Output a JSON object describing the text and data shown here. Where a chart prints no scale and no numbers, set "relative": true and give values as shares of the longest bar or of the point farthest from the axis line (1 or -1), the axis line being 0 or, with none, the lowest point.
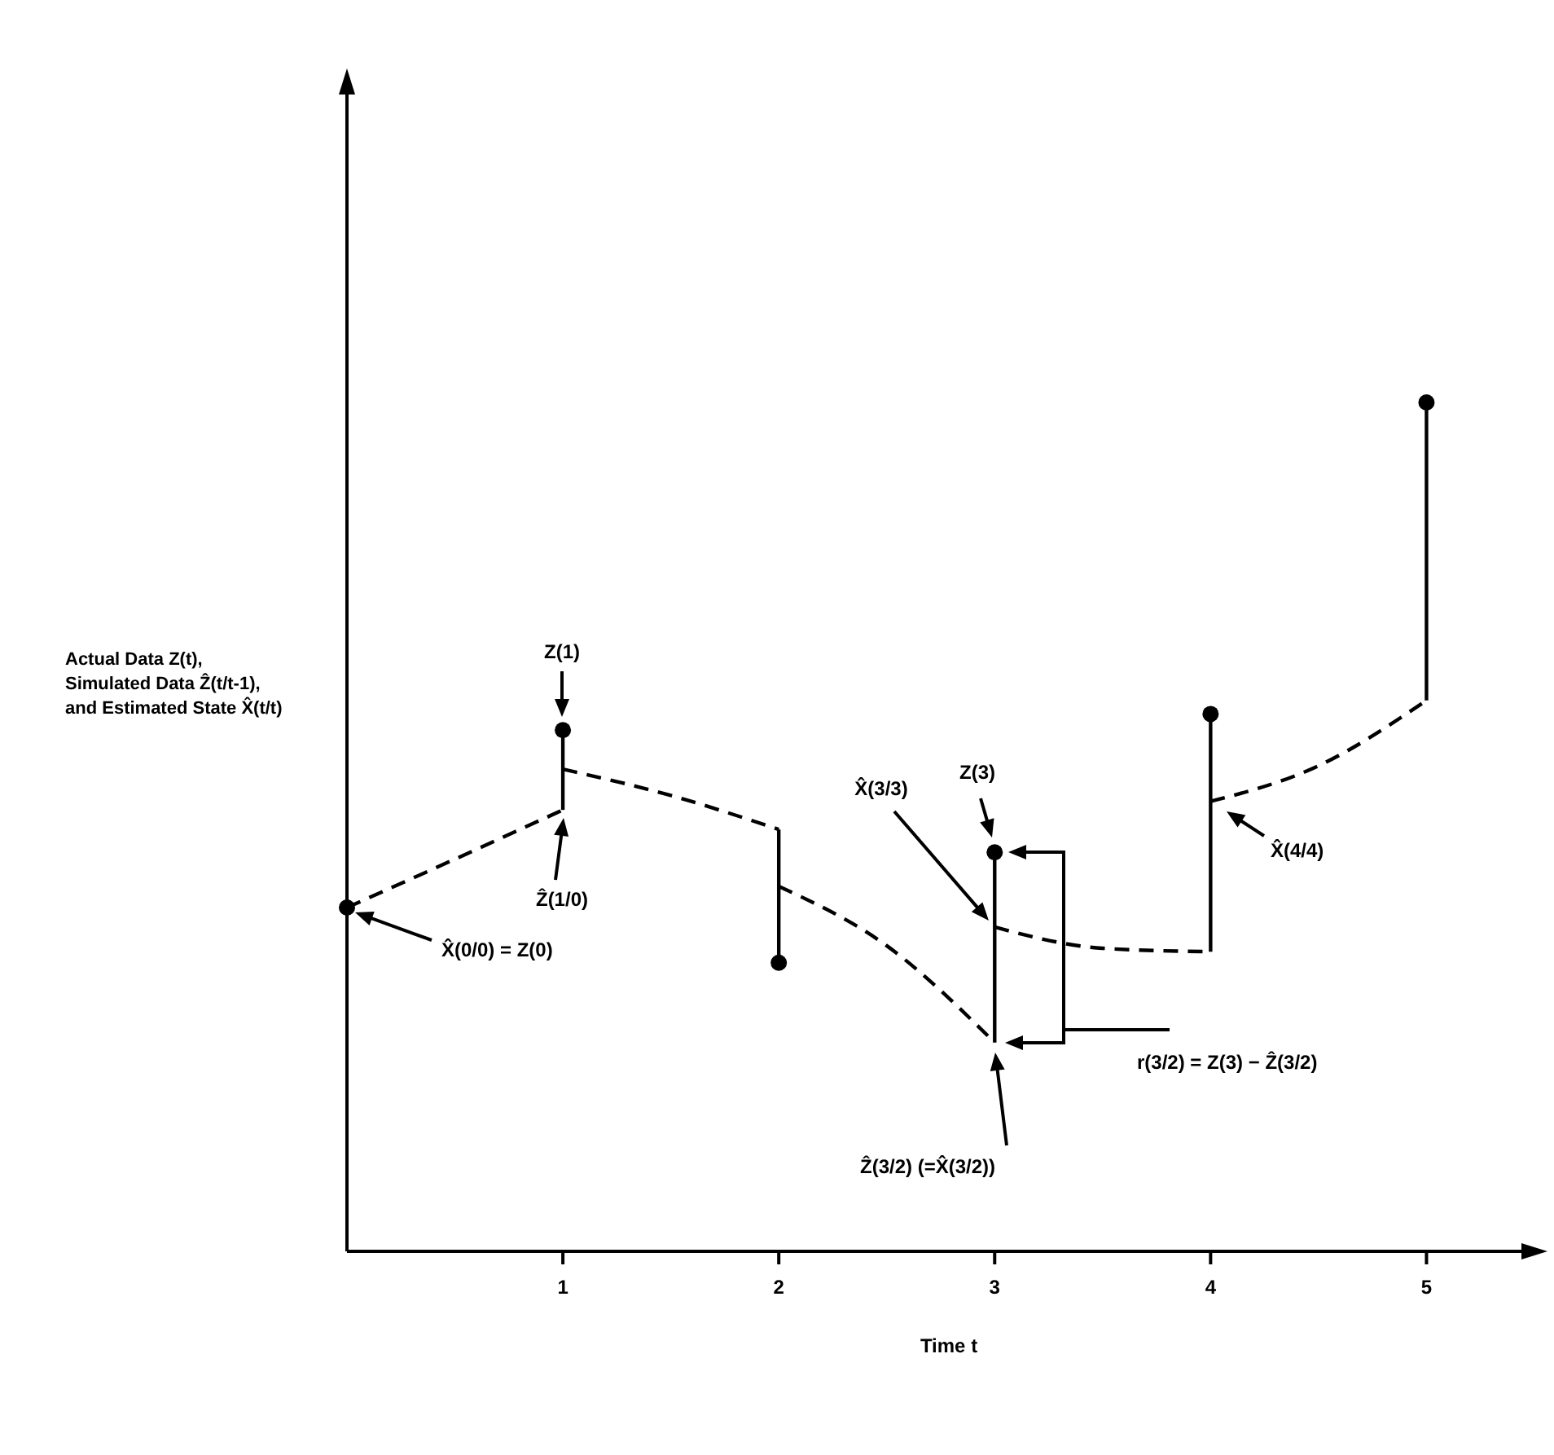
{
  "chart_data": {
    "type": "line",
    "relative": true,
    "xlabel": "Time  t",
    "ylabel": "Actual Data Z(t),\nSimulated Data Ẑ(t/t-1),\nand Estimated State X̂(t/t)",
    "xlim": [
      0,
      5.5
    ],
    "xticks": [
      1,
      2,
      3,
      4,
      5
    ],
    "tick_labels": "x",
    "grid": false,
    "series": [
      {
        "type": "scatter",
        "color": "#000000",
        "marker": "circle",
        "x": [
          0,
          1,
          2,
          3,
          4,
          5
        ],
        "values": [
          0.405,
          0.614,
          0.34,
          0.47,
          0.633,
          1.0
        ]
      },
      {
        "color": "#000000",
        "marker": "none",
        "line_style": "dashed",
        "x": [
          0,
          0.5,
          1
        ],
        "values": [
          0.405,
          0.462,
          0.52
        ]
      },
      {
        "color": "#000000",
        "marker": "none",
        "line_style": "dashed",
        "x": [
          1,
          1.5,
          2
        ],
        "values": [
          0.568,
          0.537,
          0.497
        ]
      },
      {
        "color": "#000000",
        "marker": "none",
        "line_style": "dashed",
        "x": [
          2,
          2.5,
          3
        ],
        "values": [
          0.43,
          0.36,
          0.246
        ]
      },
      {
        "color": "#000000",
        "marker": "none",
        "line_style": "dashed",
        "x": [
          3,
          3.5,
          4
        ],
        "values": [
          0.382,
          0.357,
          0.353
        ]
      },
      {
        "color": "#000000",
        "marker": "none",
        "line_style": "dashed",
        "x": [
          4,
          4.5,
          5
        ],
        "values": [
          0.53,
          0.572,
          0.649
        ]
      },
      {
        "color": "#000000",
        "marker": "none",
        "line_style": "solid",
        "x": [
          1,
          1
        ],
        "values": [
          0.52,
          0.614
        ]
      },
      {
        "color": "#000000",
        "marker": "none",
        "line_style": "solid",
        "x": [
          2,
          2
        ],
        "values": [
          0.497,
          0.34
        ]
      },
      {
        "color": "#000000",
        "marker": "none",
        "line_style": "solid",
        "x": [
          3,
          3
        ],
        "values": [
          0.246,
          0.47
        ]
      },
      {
        "color": "#000000",
        "marker": "none",
        "line_style": "solid",
        "x": [
          4,
          4
        ],
        "values": [
          0.353,
          0.633
        ]
      },
      {
        "color": "#000000",
        "marker": "none",
        "line_style": "solid",
        "x": [
          5,
          5
        ],
        "values": [
          0.649,
          1.0
        ]
      }
    ],
    "annotations": [
      "X̂(0/0) = Z(0)",
      "Z(1)",
      "Ẑ(1/0)",
      "X̂(3/3)",
      "Z(3)",
      "Ẑ(3/2)  (=X̂(3/2))",
      "r(3/2) = Z(3) − Ẑ(3/2)",
      "X̂(4/4)"
    ]
  }
}
